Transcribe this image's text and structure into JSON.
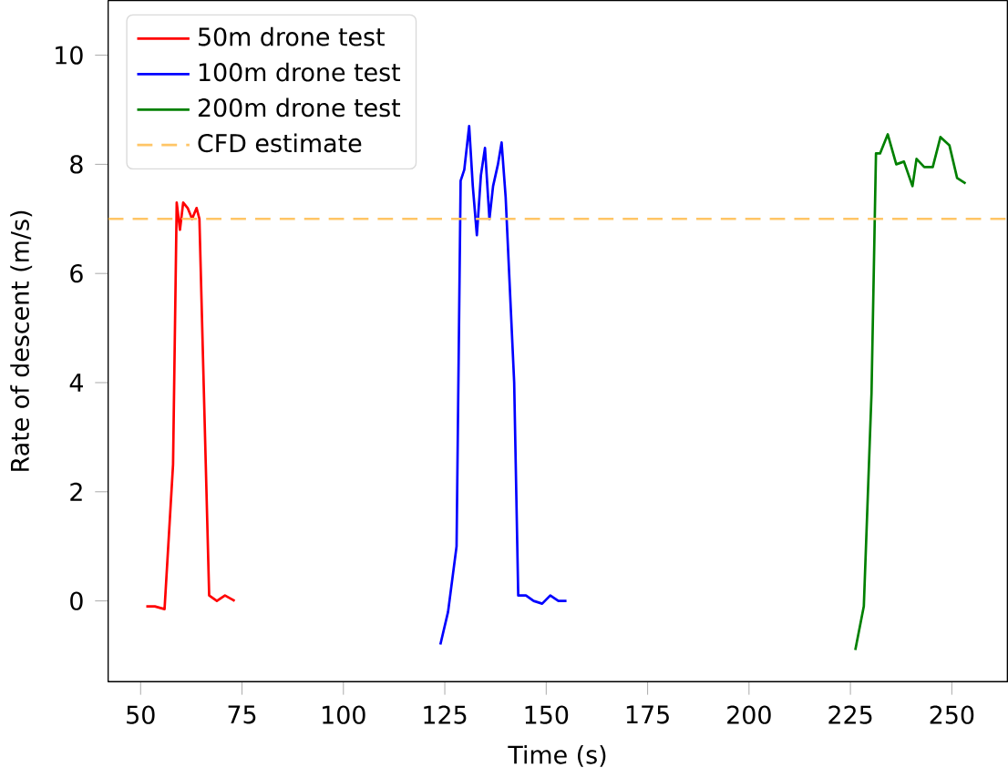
{
  "chart_data": {
    "type": "line",
    "xlabel": "Time (s)",
    "ylabel": "Rate of descent (m/s)",
    "xlim": [
      42,
      263.7
    ],
    "ylim": [
      -1.48,
      11.0
    ],
    "xticks": [
      50,
      75,
      100,
      125,
      150,
      175,
      200,
      225,
      250
    ],
    "yticks": [
      0,
      2,
      4,
      6,
      8,
      10
    ],
    "legend": "top left",
    "grid": false,
    "line_style": "solid",
    "marker": "none",
    "series": [
      {
        "name": "50m drone test",
        "color": "#ff0000",
        "x": [
          51.4,
          53.5,
          55.9,
          58,
          58.9,
          59.7,
          60.5,
          61.6,
          62.7,
          63.8,
          64.5,
          66.9,
          68.8,
          70.8,
          73.2
        ],
        "values": [
          -0.1,
          -0.1,
          -0.15,
          2.5,
          7.3,
          6.8,
          7.3,
          7.2,
          7.0,
          7.2,
          7.0,
          0.1,
          0.0,
          0.1,
          0.0
        ]
      },
      {
        "name": "100m drone test",
        "color": "#0000ff",
        "x": [
          123.9,
          125.8,
          127.9,
          128.9,
          129.8,
          131,
          131.9,
          132.9,
          133.9,
          134.9,
          136,
          136.9,
          138.1,
          139,
          140,
          142.1,
          143.1,
          145,
          146.9,
          149,
          151,
          153,
          155
        ],
        "values": [
          -0.8,
          -0.2,
          1.0,
          7.7,
          7.9,
          8.7,
          7.6,
          6.7,
          7.8,
          8.3,
          7.0,
          7.6,
          8.0,
          8.4,
          7.4,
          4.0,
          0.1,
          0.1,
          0.0,
          -0.05,
          0.1,
          0.0,
          0.0
        ]
      },
      {
        "name": "200m drone test",
        "color": "#008000",
        "x": [
          226.2,
          228.3,
          230.2,
          231.3,
          232.3,
          234.2,
          236.3,
          238.2,
          240.3,
          241.3,
          243.2,
          245.3,
          247.2,
          249.4,
          251.3,
          253.4
        ],
        "values": [
          -0.9,
          -0.1,
          3.8,
          8.2,
          8.2,
          8.55,
          8.0,
          8.05,
          7.6,
          8.1,
          7.95,
          7.95,
          8.5,
          8.35,
          7.75,
          7.65
        ]
      }
    ],
    "ref_lines": [
      {
        "axis": "y",
        "value": 7,
        "label": "CFD estimate",
        "color": "#ffc566",
        "line_style": "dashed"
      }
    ]
  }
}
